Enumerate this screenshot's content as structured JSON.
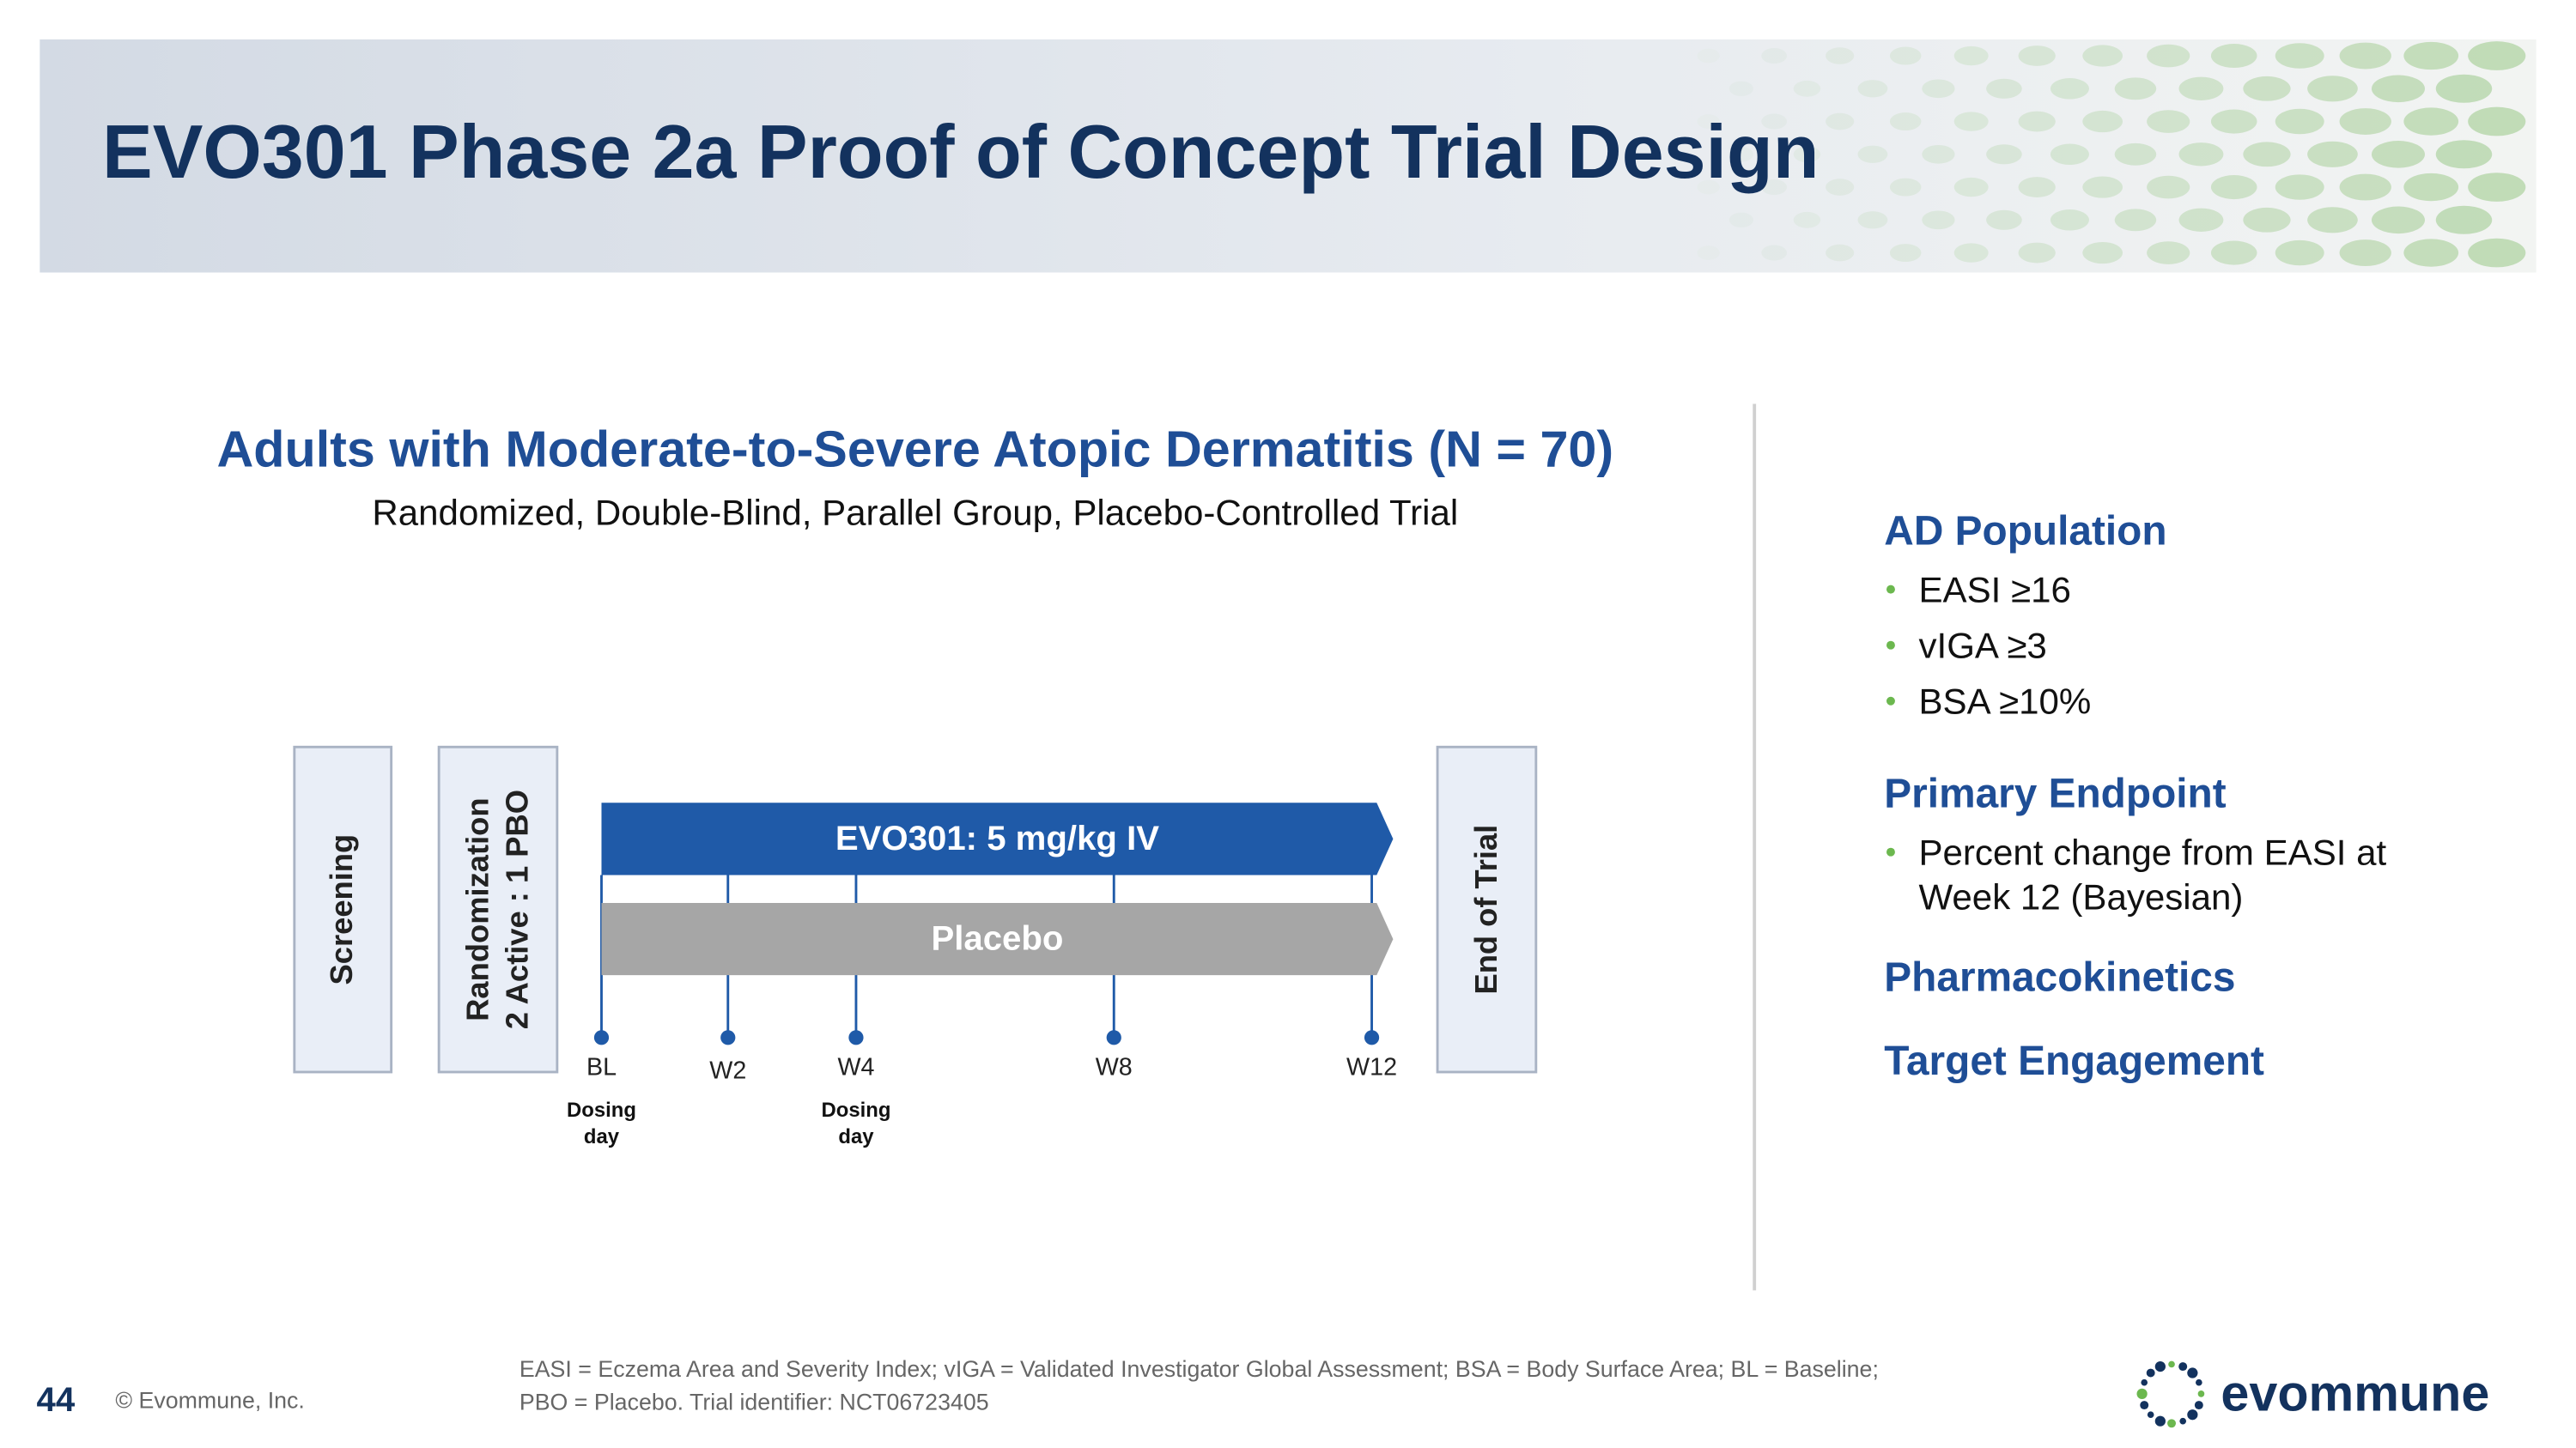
{
  "header": {
    "title": "EVO301 Phase 2a Proof of Concept Trial Design"
  },
  "design": {
    "heading": "Adults with Moderate-to-Severe Atopic Dermatitis (N = 70)",
    "subheading": "Randomized, Double-Blind, Parallel Group, Placebo-Controlled Trial",
    "screening": "Screening",
    "randomization": [
      "Randomization",
      "2 Active : 1 PBO"
    ],
    "end": "End of Trial",
    "arms": [
      "EVO301: 5 mg/kg IV",
      "Placebo"
    ],
    "timepoints": [
      {
        "label": "BL",
        "note": [
          "Dosing",
          "day"
        ]
      },
      {
        "label": "W2"
      },
      {
        "label": "W4",
        "note": [
          "Dosing",
          "day"
        ]
      },
      {
        "label": "W8"
      },
      {
        "label": "W12"
      }
    ]
  },
  "sidebar": [
    {
      "heading": "AD Population",
      "bullets": [
        [
          "EASI ≥16"
        ],
        [
          "vIGA ≥3"
        ],
        [
          "BSA ≥10%"
        ]
      ]
    },
    {
      "heading": "Primary Endpoint",
      "bullets": [
        [
          "Percent change from EASI at",
          "Week 12 (Bayesian)"
        ]
      ]
    },
    {
      "heading": "Pharmacokinetics"
    },
    {
      "heading": "Target Engagement"
    }
  ],
  "footer": {
    "page": "44",
    "copyright": "© Evommune, Inc.",
    "footnote": [
      "EASI = Eczema Area and Severity Index; vIGA = Validated Investigator Global Assessment; BSA = Body Surface Area; BL = Baseline;",
      "PBO = Placebo. Trial identifier: NCT06723405"
    ],
    "logo": "evommune"
  }
}
